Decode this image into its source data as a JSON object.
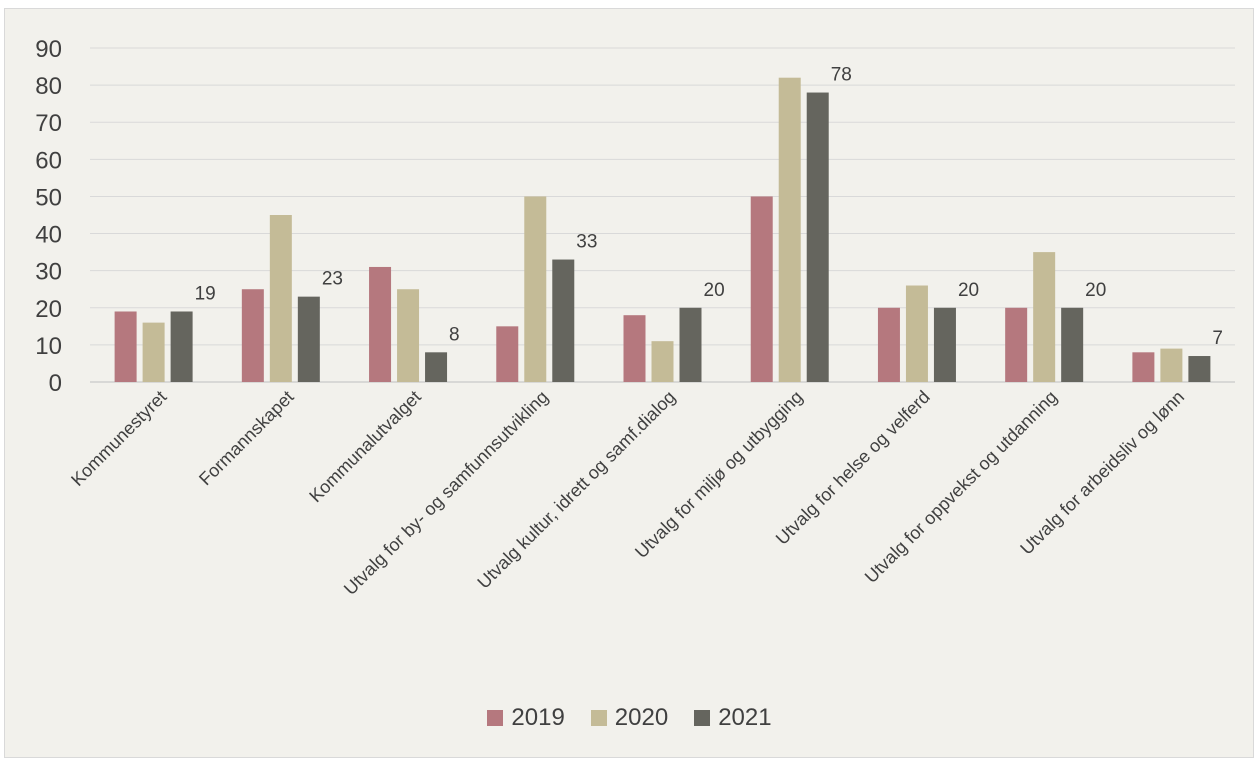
{
  "chart_data": {
    "type": "bar",
    "categories": [
      "Kommunestyret",
      "Formannskapet",
      "Kommunalutvalget",
      "Utvalg for by- og samfunnsutvikling",
      "Utvalg kultur, idrett og samf.dialog",
      "Utvalg for miljø og utbygging",
      "Utvalg for helse og velferd",
      "Utvalg for oppvekst og utdanning",
      "Utvalg for arbeidsliv og lønn"
    ],
    "series": [
      {
        "name": "2019",
        "color": "#b5787e",
        "values": [
          19,
          25,
          31,
          15,
          18,
          50,
          20,
          20,
          8
        ]
      },
      {
        "name": "2020",
        "color": "#c4bb97",
        "values": [
          16,
          45,
          25,
          50,
          11,
          82,
          26,
          35,
          9
        ]
      },
      {
        "name": "2021",
        "color": "#65655e",
        "values": [
          19,
          23,
          8,
          33,
          20,
          78,
          20,
          20,
          7
        ]
      }
    ],
    "data_labels_series": "2021",
    "ylim": [
      0,
      90
    ],
    "yticks": [
      0,
      10,
      20,
      30,
      40,
      50,
      60,
      70,
      80,
      90
    ],
    "grid": true,
    "legend_position": "bottom",
    "title": "",
    "xlabel": "",
    "ylabel": ""
  }
}
